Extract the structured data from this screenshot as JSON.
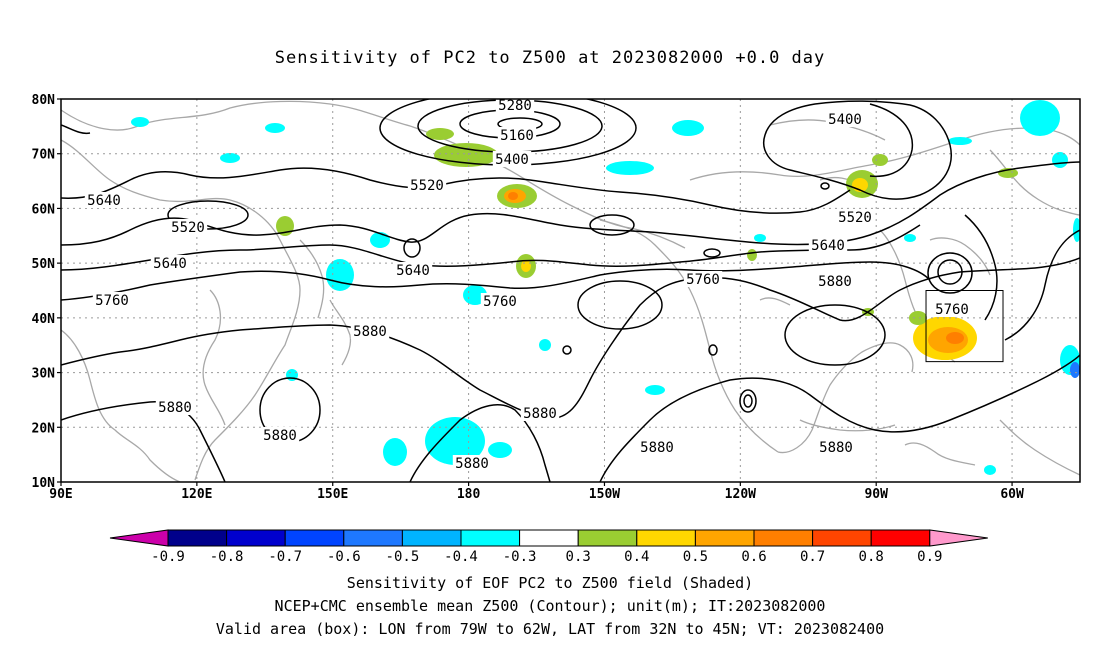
{
  "title": "Sensitivity of PC2 to Z500 at 2023082000 +0.0 day",
  "map": {
    "lat_range": [
      10,
      80
    ],
    "lon_range_east": [
      90,
      315
    ],
    "lat_ticks": [
      "80N",
      "70N",
      "60N",
      "50N",
      "40N",
      "30N",
      "20N",
      "10N"
    ],
    "lon_ticks": [
      "90E",
      "120E",
      "150E",
      "180",
      "150W",
      "120W",
      "90W",
      "60W"
    ],
    "grid": true,
    "valid_box": {
      "lon_west": 79,
      "lon_east": 62,
      "lat_south": 32,
      "lat_north": 45
    },
    "contour_labels": [
      "5280",
      "5160",
      "5400",
      "5400",
      "5520",
      "5520",
      "5520",
      "5640",
      "5640",
      "5640",
      "5640",
      "5760",
      "5760",
      "5760",
      "5760",
      "5880",
      "5880",
      "5880",
      "5880",
      "5880",
      "5880",
      "5880",
      "5880"
    ]
  },
  "colorbar": {
    "labels": [
      "-0.9",
      "-0.8",
      "-0.7",
      "-0.6",
      "-0.5",
      "-0.4",
      "-0.3",
      "0.3",
      "0.4",
      "0.5",
      "0.6",
      "0.7",
      "0.8",
      "0.9"
    ],
    "colors": [
      "#cc00aa",
      "#00008b",
      "#0000cd",
      "#0044ff",
      "#1e78ff",
      "#00b4ff",
      "#00ffff",
      "#ffffff",
      "#9acd32",
      "#ffd700",
      "#ffa500",
      "#ff7f00",
      "#ff4500",
      "#ff0000",
      "#ff99cc"
    ]
  },
  "captions": [
    "Sensitivity of EOF PC2 to Z500 field (Shaded)",
    "NCEP+CMC ensemble mean Z500 (Contour); unit(m); IT:2023082000",
    "Valid area (box): LON from 79W to 62W, LAT from 32N to 45N; VT: 2023082400"
  ]
}
